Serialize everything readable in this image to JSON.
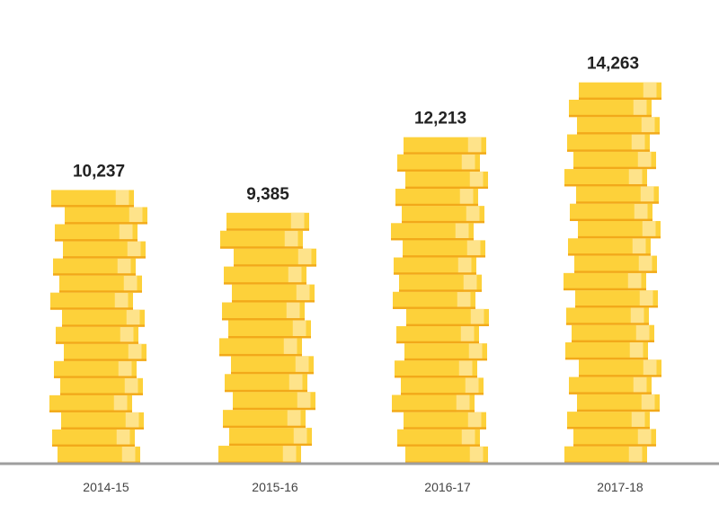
{
  "chart_data": {
    "type": "bar",
    "categories": [
      "2014-15",
      "2015-16",
      "2016-17",
      "2017-18"
    ],
    "values": [
      10237,
      9385,
      12213,
      14263
    ],
    "value_labels": [
      "10,237",
      "9,385",
      "12,213",
      "14,263"
    ],
    "title": "",
    "xlabel": "",
    "ylabel": "",
    "ylim": [
      0,
      16000
    ],
    "grid": false,
    "legend": "none",
    "style": "stacked coins"
  },
  "colors": {
    "coin_face": "#FDD13A",
    "coin_shine": "#FEE38A",
    "coin_edge": "#F2A91A",
    "baseline": "#9E9E9E",
    "value_text": "#222222",
    "tick_text": "#444444"
  }
}
